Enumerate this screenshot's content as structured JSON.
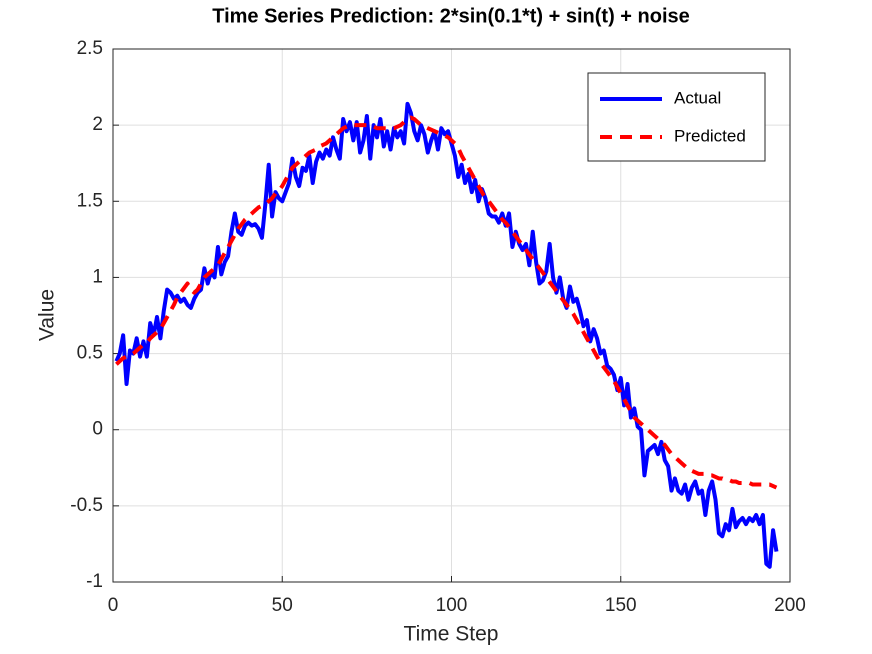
{
  "chart_data": {
    "type": "line",
    "title": "Time Series Prediction: 2*sin(0.1*t) + sin(t) + noise",
    "xlabel": "Time Step",
    "ylabel": "Value",
    "x": [
      1,
      2,
      3,
      4,
      5,
      6,
      7,
      8,
      9,
      10,
      11,
      12,
      13,
      14,
      15,
      16,
      17,
      18,
      19,
      20,
      21,
      22,
      23,
      24,
      25,
      26,
      27,
      28,
      29,
      30,
      31,
      32,
      33,
      34,
      35,
      36,
      37,
      38,
      39,
      40,
      41,
      42,
      43,
      44,
      45,
      46,
      47,
      48,
      49,
      50,
      51,
      52,
      53,
      54,
      55,
      56,
      57,
      58,
      59,
      60,
      61,
      62,
      63,
      64,
      65,
      66,
      67,
      68,
      69,
      70,
      71,
      72,
      73,
      74,
      75,
      76,
      77,
      78,
      79,
      80,
      81,
      82,
      83,
      84,
      85,
      86,
      87,
      88,
      89,
      90,
      91,
      92,
      93,
      94,
      95,
      96,
      97,
      98,
      99,
      100,
      101,
      102,
      103,
      104,
      105,
      106,
      107,
      108,
      109,
      110,
      111,
      112,
      113,
      114,
      115,
      116,
      117,
      118,
      119,
      120,
      121,
      122,
      123,
      124,
      125,
      126,
      127,
      128,
      129,
      130,
      131,
      132,
      133,
      134,
      135,
      136,
      137,
      138,
      139,
      140,
      141,
      142,
      143,
      144,
      145,
      146,
      147,
      148,
      149,
      150,
      151,
      152,
      153,
      154,
      155,
      156,
      157,
      158,
      159,
      160,
      161,
      162,
      163,
      164,
      165,
      166,
      167,
      168,
      169,
      170,
      171,
      172,
      173,
      174,
      175,
      176,
      177,
      178,
      179,
      180,
      181,
      182,
      183,
      184,
      185,
      186,
      187,
      188,
      189,
      190,
      191,
      192,
      193,
      194,
      195,
      196
    ],
    "series": [
      {
        "name": "Actual",
        "color": "#0000ff",
        "dash": false,
        "values": [
          0.45,
          0.5,
          0.62,
          0.3,
          0.52,
          0.5,
          0.6,
          0.48,
          0.58,
          0.48,
          0.7,
          0.62,
          0.74,
          0.6,
          0.78,
          0.92,
          0.9,
          0.86,
          0.88,
          0.84,
          0.86,
          0.82,
          0.8,
          0.86,
          0.9,
          0.92,
          1.06,
          0.96,
          1.04,
          1.0,
          1.2,
          1.02,
          1.1,
          1.14,
          1.3,
          1.42,
          1.3,
          1.28,
          1.34,
          1.36,
          1.34,
          1.35,
          1.32,
          1.26,
          1.48,
          1.74,
          1.4,
          1.56,
          1.52,
          1.5,
          1.56,
          1.62,
          1.78,
          1.66,
          1.6,
          1.72,
          1.7,
          1.8,
          1.62,
          1.76,
          1.82,
          1.78,
          1.84,
          1.8,
          1.92,
          1.84,
          1.78,
          2.04,
          1.96,
          2.02,
          1.9,
          2.02,
          1.82,
          1.9,
          2.06,
          1.78,
          2.0,
          1.92,
          2.04,
          1.86,
          1.96,
          1.84,
          1.98,
          1.92,
          1.96,
          1.88,
          2.14,
          2.08,
          1.96,
          1.9,
          2.0,
          1.94,
          1.82,
          1.9,
          1.96,
          1.84,
          1.98,
          1.94,
          1.96,
          1.88,
          1.8,
          1.66,
          1.74,
          1.62,
          1.68,
          1.56,
          1.64,
          1.5,
          1.58,
          1.52,
          1.42,
          1.4,
          1.4,
          1.36,
          1.42,
          1.34,
          1.42,
          1.2,
          1.3,
          1.22,
          1.18,
          1.22,
          1.08,
          1.3,
          1.1,
          0.96,
          0.98,
          1.04,
          1.22,
          1.0,
          0.9,
          1.0,
          0.86,
          0.8,
          0.94,
          0.84,
          0.86,
          0.78,
          0.68,
          0.72,
          0.58,
          0.66,
          0.6,
          0.5,
          0.52,
          0.42,
          0.4,
          0.36,
          0.26,
          0.34,
          0.16,
          0.3,
          0.08,
          0.14,
          0.02,
          0.0,
          -0.3,
          -0.14,
          -0.12,
          -0.1,
          -0.16,
          -0.08,
          -0.2,
          -0.24,
          -0.4,
          -0.32,
          -0.4,
          -0.42,
          -0.36,
          -0.46,
          -0.38,
          -0.34,
          -0.42,
          -0.4,
          -0.56,
          -0.4,
          -0.34,
          -0.46,
          -0.68,
          -0.7,
          -0.62,
          -0.66,
          -0.52,
          -0.64,
          -0.6,
          -0.58,
          -0.62,
          -0.58,
          -0.6,
          -0.56,
          -0.62,
          -0.56,
          -0.88,
          -0.9,
          -0.66,
          -0.8
        ]
      },
      {
        "name": "Predicted",
        "color": "#ff0000",
        "dash": true,
        "values": [
          0.43,
          0.45,
          0.47,
          0.48,
          0.49,
          0.5,
          0.52,
          0.54,
          0.56,
          0.57,
          0.6,
          0.62,
          0.64,
          0.66,
          0.7,
          0.74,
          0.78,
          0.82,
          0.87,
          0.9,
          0.93,
          0.96,
          0.92,
          0.9,
          0.92,
          0.96,
          1.0,
          1.02,
          1.04,
          1.06,
          1.08,
          1.12,
          1.16,
          1.2,
          1.24,
          1.28,
          1.32,
          1.35,
          1.38,
          1.4,
          1.42,
          1.44,
          1.46,
          1.47,
          1.48,
          1.5,
          1.52,
          1.55,
          1.57,
          1.6,
          1.64,
          1.68,
          1.72,
          1.74,
          1.76,
          1.78,
          1.8,
          1.82,
          1.83,
          1.84,
          1.86,
          1.87,
          1.88,
          1.9,
          1.92,
          1.94,
          1.96,
          1.98,
          1.99,
          2.0,
          2.0,
          2.0,
          2.0,
          2.0,
          2.0,
          1.99,
          1.99,
          1.98,
          1.98,
          1.98,
          1.98,
          1.98,
          1.98,
          1.99,
          2.0,
          2.02,
          2.04,
          2.05,
          2.04,
          2.02,
          2.0,
          1.99,
          1.98,
          1.97,
          1.96,
          1.95,
          1.94,
          1.93,
          1.92,
          1.9,
          1.88,
          1.85,
          1.8,
          1.76,
          1.72,
          1.68,
          1.64,
          1.6,
          1.56,
          1.52,
          1.5,
          1.47,
          1.44,
          1.41,
          1.38,
          1.36,
          1.33,
          1.3,
          1.27,
          1.24,
          1.21,
          1.18,
          1.15,
          1.12,
          1.09,
          1.06,
          1.03,
          1.0,
          0.97,
          0.94,
          0.91,
          0.88,
          0.85,
          0.82,
          0.79,
          0.76,
          0.72,
          0.68,
          0.64,
          0.6,
          0.56,
          0.52,
          0.48,
          0.44,
          0.41,
          0.38,
          0.35,
          0.32,
          0.28,
          0.24,
          0.2,
          0.16,
          0.12,
          0.08,
          0.06,
          0.04,
          0.02,
          0.0,
          -0.02,
          -0.04,
          -0.06,
          -0.08,
          -0.1,
          -0.13,
          -0.16,
          -0.18,
          -0.2,
          -0.22,
          -0.24,
          -0.26,
          -0.27,
          -0.28,
          -0.29,
          -0.29,
          -0.29,
          -0.3,
          -0.3,
          -0.31,
          -0.32,
          -0.32,
          -0.33,
          -0.33,
          -0.34,
          -0.34,
          -0.35,
          -0.35,
          -0.35,
          -0.35,
          -0.36,
          -0.36,
          -0.36,
          -0.36,
          -0.36,
          -0.36,
          -0.37,
          -0.38
        ]
      }
    ],
    "xlim": [
      0,
      200
    ],
    "xticks": [
      0,
      50,
      100,
      150,
      200
    ],
    "ylim": [
      -1,
      2.5
    ],
    "yticks": [
      -1,
      -0.5,
      0,
      0.5,
      1,
      1.5,
      2,
      2.5
    ],
    "grid": true,
    "legend": "upper right"
  }
}
